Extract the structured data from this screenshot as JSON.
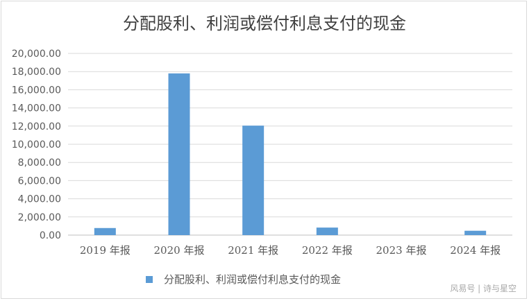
{
  "chart_data": {
    "type": "bar",
    "title": "分配股利、利润或偿付利息支付的现金",
    "categories": [
      "2019 年报",
      "2020 年报",
      "2021 年报",
      "2022 年报",
      "2023 年报",
      "2024 年报"
    ],
    "series": [
      {
        "name": "分配股利、利润或偿付利息支付的现金",
        "color": "#5b9bd5",
        "values": [
          780,
          17800,
          12050,
          830,
          0,
          480
        ]
      }
    ],
    "ylim": [
      0,
      20000
    ],
    "yticks": [
      "0.00",
      "2,000.00",
      "4,000.00",
      "6,000.00",
      "8,000.00",
      "10,000.00",
      "12,000.00",
      "14,000.00",
      "16,000.00",
      "18,000.00",
      "20,000.00"
    ],
    "grid": true,
    "legend_position": "bottom"
  },
  "watermark": "风易号 | 诗与星空"
}
